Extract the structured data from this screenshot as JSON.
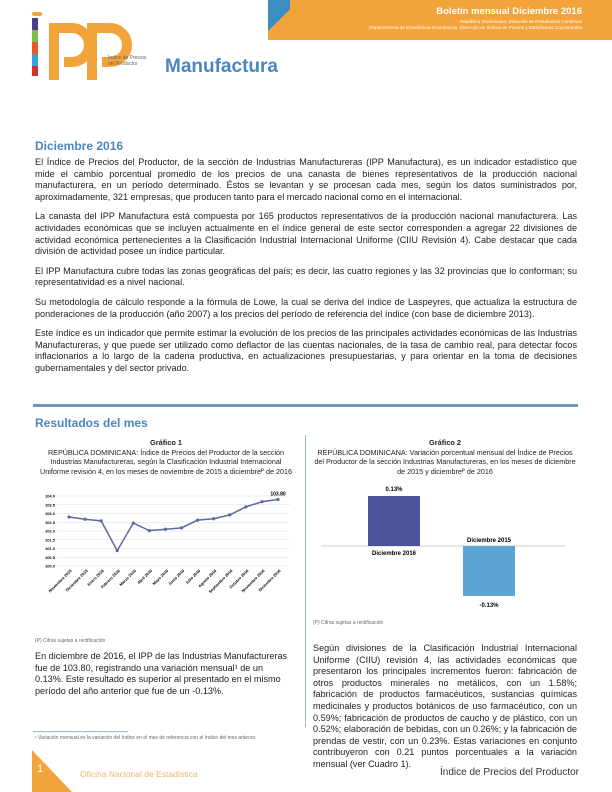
{
  "header": {
    "bulletin": "Boletín mensual Diciembre 2016",
    "sub1": "República Dominicana. Dirección de Estadísticas Continuas",
    "sub2": "Departamento de Estadísticas Económicas. Dirección de Índices de Precios y Estadísticas Coyunturales",
    "accent": "#f2a33a"
  },
  "logo": {
    "letters": "IPP",
    "text": "Índice de Precios del Productor"
  },
  "title": "Manufactura",
  "section1": {
    "heading": "Diciembre 2016",
    "paragraphs": [
      "El Índice de Precios del Productor, de la sección de Industrias Manufactureras (IPP Manufactura), es un indicador estadístico que mide el cambio porcentual promedio de los precios de una canasta de bienes representativos de la producción nacional manufacturera, en un período determinado. Éstos se levantan y se procesan cada mes, según los datos suministrados por, aproximadamente, 321 empresas, que producen tanto para el mercado nacional como en el internacional.",
      "La canasta del IPP Manufactura está compuesta por 165 productos representativos de la producción nacional manufacturera. Las actividades económicas que se incluyen actualmente en el índice general de este sector corresponden a agregar 22 divisiones de actividad económica pertenecientes a la Clasificación Industrial Internacional Uniforme (CIIU Revisión 4). Cabe destacar que cada división de actividad posee un índice particular.",
      "El IPP Manufactura cubre todas las zonas geográficas del país; es decir, las cuatro regiones y las 32 provincias que lo conforman; su representatividad es a nivel nacional.",
      "Su metodología de cálculo responde a la fórmula de Lowe, la cual se deriva del índice de Laspeyres, que actualiza la estructura de ponderaciones de la producción (año 2007) a los precios del período de referencia del índice (con base de diciembre 2013).",
      "Este índice es un indicador que permite estimar la evolución de los precios de las principales actividades económicas de las Industrias Manufactureras, y que puede ser utilizado como deflactor de las cuentas nacionales, de la tasa de cambio real, para detectar focos inflacionarios a lo largo de la cadena productiva, en actualizaciones presupuestarias, y para orientar en la toma de decisiones gubernamentales y del sector privado."
    ]
  },
  "section2": {
    "heading": "Resultados del mes",
    "left_text": "En diciembre de 2016, el IPP de las Industrias Manufactureras fue de 103.80, registrando una variación mensual¹ de un 0.13%. Este resultado es superior al presentado en el mismo período del año anterior que fue de un -0.13%.",
    "footnote": "¹ Variación mensual es la variación del índice en el mes de referencia con el índice del mes anterior.",
    "right_text": "Según divisiones de la Clasificación Industrial Internacional Uniforme (CIIU) revisión 4, las actividades económicas que presentaron los principales incrementos fueron: fabricación de otros productos minerales no metálicos, con un 1.58%; fabricación de productos farmacéuticos, sustancias químicas medicinales y productos botánicos de uso farmacéutico, con un 0.59%; fabricación de productos de caucho y de plástico, con un 0.52%; elaboración de bebidas, con un 0.26%; y la fabricación de prendas de vestir, con un 0.23%. Estas variaciones en conjunto contribuyeron con 0.21 puntos porcentuales a la variación mensual (ver Cuadro 1)."
  },
  "chart_data": [
    {
      "type": "line",
      "label": "Gráfico 1",
      "title": "REPÚBLICA DOMINICANA: Índice de Precios del Productor de la sección Industrias Manufactureras, según la Clasificación Industrial Internacional Uniforme revisión 4, en los meses de noviembre de 2015 a diciembreᴾ de 2016",
      "categories": [
        "Noviembre 2015",
        "Diciembre 2015",
        "Enero 2016",
        "Febrero 2016",
        "Marzo 2016",
        "Abril 2016",
        "Mayo 2016",
        "Junio 2016",
        "Julio 2016",
        "Agosto 2016",
        "Septiembre 2016",
        "Octubre 2016",
        "Noviembre 2016",
        "Diciembre 2016"
      ],
      "values": [
        102.8,
        102.67,
        102.58,
        100.88,
        102.45,
        102.02,
        102.1,
        102.18,
        102.62,
        102.7,
        102.92,
        103.38,
        103.67,
        103.8
      ],
      "ylim": [
        100.0,
        104.0
      ],
      "yticks": [
        "100.0",
        "100.5",
        "101.0",
        "101.5",
        "102.0",
        "102.5",
        "103.0",
        "103.5",
        "104.0"
      ],
      "data_label": "103.80",
      "grid": true,
      "color": "#5a6a9c",
      "note": "(P) Cifras sujetas a rectificación"
    },
    {
      "type": "bar",
      "label": "Gráfico 2",
      "title": "REPÚBLICA DOMINICANA: Variación porcentual mensual del Índice de Precios del Productor de la sección Industrias Manufactureras, en los meses de diciembre de 2015 y diciembreᴾ de 2016",
      "categories": [
        "Diciembre 2016",
        "Diciembre 2015"
      ],
      "values": [
        0.13,
        -0.13
      ],
      "data_labels": [
        "0.13%",
        "-0.13%"
      ],
      "colors": [
        "#4c5396",
        "#5ba4d6"
      ],
      "note": "(P) Cifras sujetas a rectificación"
    }
  ],
  "footer": {
    "page": "1",
    "left": "Oficina Nacional de Estadística",
    "right": "Índice de Precios del Productor"
  }
}
